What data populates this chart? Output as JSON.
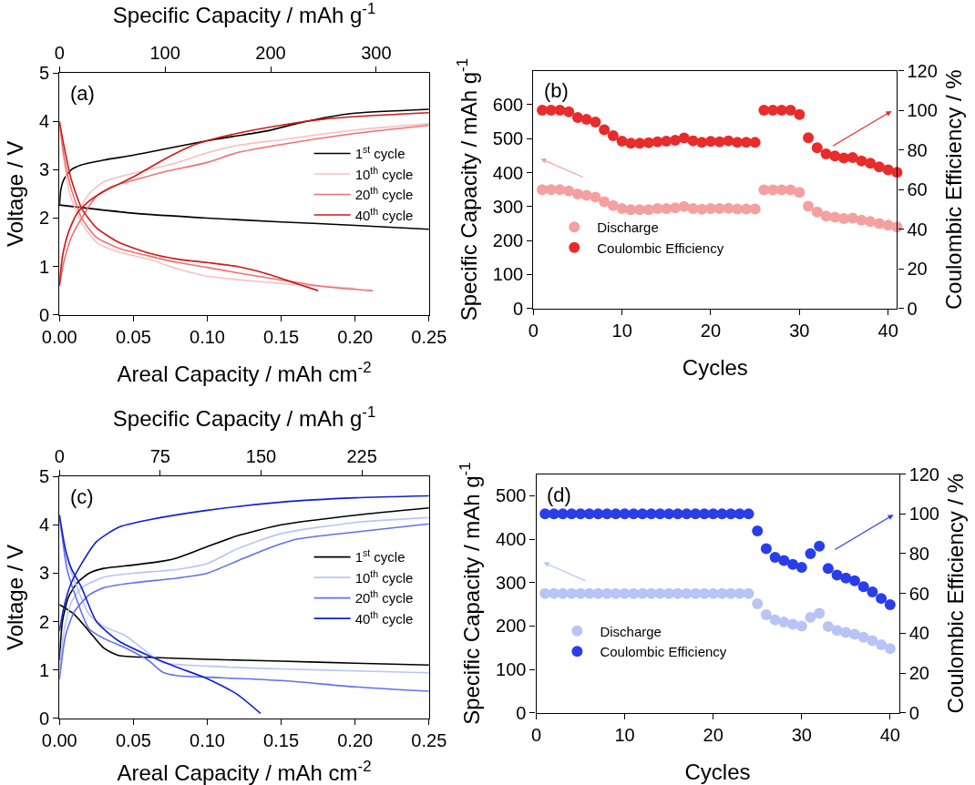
{
  "chart_data": [
    {
      "type": "line",
      "xlabel": "Areal Capacity / mAh cm$^{-2}$",
      "x2label": "Specific Capacity / mAh g$^{-1}$",
      "ylabel": "Voltage / V",
      "xlim": [
        0,
        0.25
      ],
      "xticks": [
        {
          "value": 0,
          "label": "0.00"
        },
        0.05,
        {
          "value": 0.1,
          "label": "0.10"
        },
        0.15,
        {
          "value": 0.2,
          "label": "0.20"
        },
        0.25
      ],
      "x2lim": [
        0,
        350
      ],
      "x2ticks": [
        0,
        100,
        200,
        300
      ],
      "ylim": [
        0,
        5
      ],
      "yticks": [
        0,
        1,
        2,
        3,
        4,
        5
      ],
      "legend": "right",
      "annotations": [
        "(a)"
      ],
      "series": [
        {
          "name": "1$^{st}$ cycle",
          "color": "#000000",
          "x": [
            0,
            0.001,
            0.003,
            0.008,
            0.015,
            0.03,
            0.05,
            0.07,
            0.1,
            0.12,
            0.14,
            0.16,
            0.18,
            0.2,
            0.25,
            null,
            0,
            0.02,
            0.05,
            0.1,
            0.15,
            0.2,
            0.25
          ],
          "values": [
            2.25,
            2.6,
            2.8,
            3.0,
            3.1,
            3.2,
            3.3,
            3.42,
            3.6,
            3.7,
            3.8,
            3.95,
            4.08,
            4.17,
            4.25,
            null,
            2.27,
            2.2,
            2.1,
            2.0,
            1.92,
            1.85,
            1.77
          ]
        },
        {
          "name": "10$^{th}$ cycle",
          "color": "#f8c0c0",
          "x": [
            0,
            0.002,
            0.005,
            0.01,
            0.02,
            0.03,
            0.04,
            0.06,
            0.08,
            0.1,
            0.12,
            0.15,
            0.2,
            0.25,
            null,
            0,
            0.003,
            0.007,
            0.015,
            0.025,
            0.04,
            0.06,
            0.08,
            0.1,
            0.13,
            0.17,
            0.2
          ],
          "values": [
            0.7,
            1.2,
            1.6,
            2.0,
            2.5,
            2.75,
            2.85,
            3.0,
            3.15,
            3.35,
            3.5,
            3.62,
            3.82,
            3.95,
            null,
            3.9,
            3.2,
            2.5,
            1.9,
            1.5,
            1.3,
            1.15,
            0.95,
            0.8,
            0.7,
            0.6,
            0.55
          ]
        },
        {
          "name": "20$^{th}$ cycle",
          "color": "#f07070",
          "x": [
            0,
            0.003,
            0.008,
            0.015,
            0.025,
            0.035,
            0.05,
            0.07,
            0.1,
            0.12,
            0.15,
            0.2,
            0.25,
            null,
            0,
            0.003,
            0.008,
            0.015,
            0.025,
            0.04,
            0.06,
            0.08,
            0.1,
            0.12,
            0.15,
            0.17,
            0.19,
            0.212
          ],
          "values": [
            0.6,
            1.1,
            1.6,
            2.0,
            2.45,
            2.65,
            2.78,
            2.95,
            3.15,
            3.35,
            3.52,
            3.75,
            3.92,
            null,
            4.0,
            3.3,
            2.6,
            2.0,
            1.6,
            1.38,
            1.22,
            1.08,
            0.98,
            0.87,
            0.72,
            0.62,
            0.55,
            0.5
          ]
        },
        {
          "name": "40$^{th}$ cycle",
          "color": "#d01818",
          "x": [
            0,
            0.002,
            0.006,
            0.012,
            0.02,
            0.03,
            0.05,
            0.07,
            0.09,
            0.1,
            0.12,
            0.15,
            0.18,
            0.2,
            0.25,
            null,
            0,
            0.003,
            0.008,
            0.015,
            0.025,
            0.04,
            0.06,
            0.08,
            0.1,
            0.12,
            0.14,
            0.16,
            0.175
          ],
          "values": [
            0.6,
            1.2,
            1.7,
            2.1,
            2.35,
            2.55,
            2.85,
            3.2,
            3.5,
            3.6,
            3.75,
            3.92,
            4.05,
            4.1,
            4.18,
            null,
            4.0,
            3.5,
            2.8,
            2.2,
            1.8,
            1.5,
            1.28,
            1.15,
            1.08,
            1.0,
            0.85,
            0.65,
            0.5
          ]
        }
      ]
    },
    {
      "type": "scatter",
      "xlabel": "Cycles",
      "ylabel": "Specific Capacity / mAh g$^{-1}$",
      "y2label": "Coulombic Efficiency / %",
      "xlim": [
        0,
        41
      ],
      "xticks": [
        0,
        10,
        20,
        30,
        40
      ],
      "ylim": [
        0,
        700
      ],
      "yticks": [
        0,
        100,
        200,
        300,
        400,
        500,
        600
      ],
      "y2lim": [
        0,
        120
      ],
      "y2ticks": [
        0,
        20,
        40,
        60,
        80,
        100,
        120
      ],
      "marker": "circle",
      "legend": "bottom left",
      "annotations": [
        "(b)"
      ],
      "x": [
        1,
        2,
        3,
        4,
        5,
        6,
        7,
        8,
        9,
        10,
        11,
        12,
        13,
        14,
        15,
        16,
        17,
        18,
        19,
        20,
        21,
        22,
        23,
        24,
        25,
        26,
        27,
        28,
        29,
        30,
        31,
        32,
        33,
        34,
        35,
        36,
        37,
        38,
        39,
        40,
        41
      ],
      "series": [
        {
          "name": "Discharge",
          "color": "#f4a0a0",
          "values": [
            350,
            350,
            350,
            346,
            337,
            333,
            328,
            314,
            303,
            294,
            291,
            291,
            291,
            294,
            294,
            296,
            300,
            294,
            292,
            294,
            294,
            295,
            293,
            293,
            293,
            349,
            349,
            349,
            349,
            342,
            301,
            284,
            272,
            269,
            265,
            266,
            260,
            256,
            250,
            245,
            240
          ]
        },
        {
          "name": "Coulombic Efficiency",
          "color": "#e82c2c",
          "axis": "y2",
          "values": [
            100,
            100,
            100,
            99.2,
            96.4,
            95.4,
            94.1,
            90.2,
            87.2,
            84.4,
            83.4,
            83.4,
            83.6,
            84.1,
            84.4,
            84.9,
            86,
            84.6,
            83.8,
            84.3,
            84.1,
            84.6,
            83.8,
            83.9,
            83.8,
            100,
            100,
            100,
            100,
            97.9,
            86.2,
            81.1,
            78,
            77,
            75.9,
            76.2,
            74.4,
            73.3,
            71.5,
            70,
            68.7
          ]
        }
      ]
    },
    {
      "type": "line",
      "xlabel": "Areal Capacity / mAh cm$^{-2}$",
      "x2label": "Specific Capacity / mAh g$^{-1}$",
      "ylabel": "Voltage / V",
      "xlim": [
        0,
        0.25
      ],
      "xticks": [
        {
          "value": 0,
          "label": "0.00"
        },
        0.05,
        {
          "value": 0.1,
          "label": "0.10"
        },
        0.15,
        {
          "value": 0.2,
          "label": "0.20"
        },
        0.25
      ],
      "x2lim": [
        0,
        275
      ],
      "x2ticks": [
        0,
        75,
        150,
        225
      ],
      "ylim": [
        0,
        5
      ],
      "yticks": [
        0,
        1,
        2,
        3,
        4,
        5
      ],
      "legend": "right",
      "annotations": [
        "(c)"
      ],
      "series": [
        {
          "name": "1$^{st}$ cycle",
          "color": "#000000",
          "x": [
            0,
            0.002,
            0.006,
            0.012,
            0.02,
            0.03,
            0.05,
            0.07,
            0.08,
            0.1,
            0.12,
            0.15,
            0.2,
            0.25,
            null,
            0,
            0.01,
            0.02,
            0.03,
            0.04,
            0.06,
            0.1,
            0.15,
            0.2,
            0.25
          ],
          "values": [
            1.2,
            2.0,
            2.5,
            2.8,
            3.0,
            3.1,
            3.17,
            3.25,
            3.32,
            3.55,
            3.77,
            4.0,
            4.2,
            4.35,
            null,
            2.35,
            2.15,
            1.8,
            1.45,
            1.3,
            1.26,
            1.22,
            1.18,
            1.14,
            1.1
          ]
        },
        {
          "name": "10$^{th}$ cycle",
          "color": "#b8c4f8",
          "x": [
            0,
            0.003,
            0.008,
            0.015,
            0.03,
            0.05,
            0.08,
            0.1,
            0.12,
            0.15,
            0.2,
            0.25,
            null,
            0,
            0.005,
            0.012,
            0.02,
            0.03,
            0.045,
            0.06,
            0.07,
            0.1,
            0.15,
            0.2,
            0.25
          ],
          "values": [
            1.0,
            1.8,
            2.4,
            2.7,
            2.92,
            3.0,
            3.08,
            3.2,
            3.5,
            3.82,
            4.05,
            4.15,
            null,
            4.1,
            3.3,
            2.7,
            2.15,
            1.9,
            1.7,
            1.35,
            1.15,
            1.08,
            1.02,
            0.98,
            0.94
          ]
        },
        {
          "name": "20$^{th}$ cycle",
          "color": "#6070f0",
          "x": [
            0,
            0.004,
            0.01,
            0.02,
            0.03,
            0.05,
            0.08,
            0.1,
            0.12,
            0.14,
            0.16,
            0.2,
            0.25,
            null,
            0,
            0.005,
            0.01,
            0.02,
            0.03,
            0.045,
            0.06,
            0.07,
            0.08,
            0.1,
            0.15,
            0.2,
            0.25
          ],
          "values": [
            0.8,
            1.7,
            2.2,
            2.55,
            2.7,
            2.8,
            2.9,
            3.0,
            3.25,
            3.5,
            3.7,
            3.85,
            4.02,
            null,
            4.2,
            3.1,
            2.6,
            1.85,
            1.65,
            1.45,
            1.2,
            0.95,
            0.88,
            0.85,
            0.78,
            0.65,
            0.56
          ]
        },
        {
          "name": "40$^{th}$ cycle",
          "color": "#1020d0",
          "x": [
            0,
            0.003,
            0.008,
            0.015,
            0.025,
            0.04,
            0.06,
            0.1,
            0.15,
            0.2,
            0.25,
            null,
            0,
            0.004,
            0.008,
            0.015,
            0.025,
            0.04,
            0.06,
            0.08,
            0.1,
            0.12,
            0.136
          ],
          "values": [
            1.8,
            2.3,
            2.8,
            3.2,
            3.65,
            3.95,
            4.1,
            4.3,
            4.47,
            4.56,
            4.6,
            null,
            4.2,
            3.5,
            3.1,
            2.7,
            2.0,
            1.6,
            1.3,
            1.05,
            0.82,
            0.5,
            0.1
          ]
        }
      ]
    },
    {
      "type": "scatter",
      "xlabel": "Cycles",
      "ylabel": "Specific Capacity / mAh g$^{-1}$",
      "y2label": "Coulombic Efficiency / %",
      "xlim": [
        0,
        41
      ],
      "xticks": [
        0,
        10,
        20,
        30,
        40
      ],
      "ylim": [
        0,
        550
      ],
      "yticks": [
        0,
        100,
        200,
        300,
        400,
        500
      ],
      "y2lim": [
        0,
        120
      ],
      "y2ticks": [
        0,
        20,
        40,
        60,
        80,
        100,
        120
      ],
      "marker": "circle",
      "legend": "bottom left",
      "annotations": [
        "(d)"
      ],
      "x": [
        1,
        2,
        3,
        4,
        5,
        6,
        7,
        8,
        9,
        10,
        11,
        12,
        13,
        14,
        15,
        16,
        17,
        18,
        19,
        20,
        21,
        22,
        23,
        24,
        25,
        26,
        27,
        28,
        29,
        30,
        31,
        32,
        33,
        34,
        35,
        36,
        37,
        38,
        39,
        40
      ],
      "series": [
        {
          "name": "Discharge",
          "color": "#b8c4f5",
          "values": [
            275,
            275,
            275,
            275,
            275,
            275,
            275,
            275,
            275,
            275,
            275,
            275,
            275,
            275,
            275,
            275,
            275,
            275,
            275,
            275,
            275,
            275,
            275,
            275,
            251,
            226,
            214,
            209,
            204,
            200,
            220,
            229,
            199,
            190,
            185,
            181,
            174,
            166,
            157,
            148
          ]
        },
        {
          "name": "Coulombic Efficiency",
          "color": "#2a3de8",
          "axis": "y2",
          "values": [
            100,
            100,
            100,
            100,
            100,
            100,
            100,
            100,
            100,
            100,
            100,
            100,
            100,
            100,
            100,
            100,
            100,
            100,
            100,
            100,
            100,
            100,
            100,
            100,
            91.5,
            82.5,
            78.2,
            76.6,
            74.6,
            73.1,
            80,
            83.8,
            72.6,
            69.2,
            67.7,
            66.4,
            63.4,
            60.8,
            57.5,
            54.4
          ]
        }
      ]
    }
  ]
}
